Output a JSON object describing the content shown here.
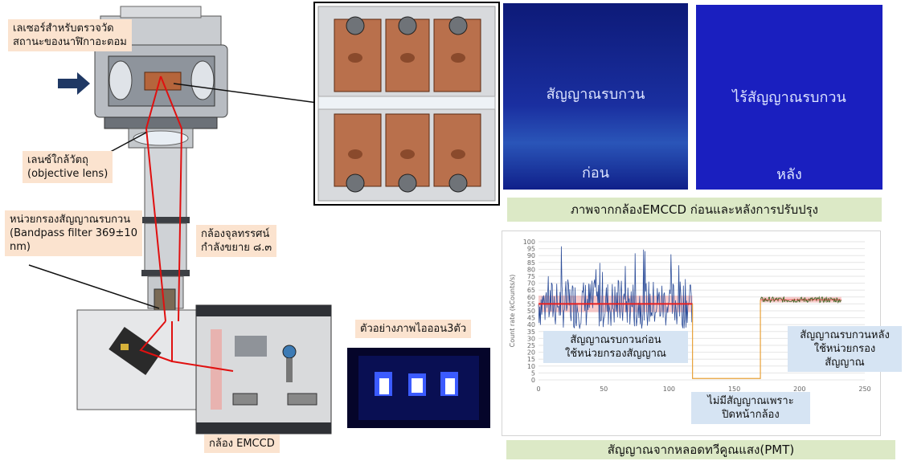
{
  "labels": {
    "laser": "เลเซอร์สำหรับตรวจวัด\nสถานะของนาฬิกาอะตอม",
    "objective": "เลนซ์ใกล้วัตถุ\n(objective lens)",
    "bandpass": "หน่วยกรองสัญญาณรบกวน\n(Bandpass filter 369±10\nnm)",
    "microscope": "กล้องจุลทรรศน์\nกำลังขยาย ๘.๓",
    "emccd": "กล้อง EMCCD",
    "ion_example": "ตัวอย่างภาพไอออน3ตัว"
  },
  "ccd_images": {
    "before_title": "สัญญาณรบกวน",
    "before_sub": "ก่อน",
    "after_title": "ไร้สัญญาณรบกวน",
    "after_sub": "หลัง",
    "caption": "ภาพจากกล้องEMCCD ก่อนและหลังการปรับปรุง"
  },
  "pmt": {
    "caption": "สัญญาณจากหลอดทวีคูณแสง(PMT)",
    "before_label": "สัญญาณรบกวนก่อน\nใช้หน่วยกรองสัญญาณ",
    "closed_label": "ไม่มีสัญญาณเพราะ\nปิดหน้ากล้อง",
    "after_label": "สัญญาณรบกวนหลัง\nใช้หน่วยกรอง\nสัญญาณ"
  },
  "colors": {
    "arrow": "#1f3864",
    "beam": "#e01010",
    "ccd_before": "#10208a",
    "ccd_after": "#1a1fbf",
    "series_raw_before": "#2f4f9a",
    "series_mean": "#e82020",
    "series_band": "#f4a6a6",
    "series_closed": "#e8a23a",
    "series_after": "#3d6b2b"
  },
  "chart_data": {
    "type": "line",
    "title": "",
    "xlabel": "",
    "ylabel": "Count rate (kCounts/s)",
    "xlim": [
      0,
      250
    ],
    "ylim": [
      0,
      100
    ],
    "x_ticks": [
      0,
      50,
      100,
      150,
      200,
      250
    ],
    "y_ticks": [
      0,
      5,
      10,
      15,
      20,
      25,
      30,
      35,
      40,
      45,
      50,
      55,
      60,
      65,
      70,
      75,
      80,
      85,
      90,
      95,
      100
    ],
    "grid": true,
    "segments": [
      {
        "x_start": 0,
        "x_end": 118,
        "mean": 55,
        "band": [
          49,
          61
        ],
        "min": 30,
        "max": 100
      },
      {
        "x_start": 118,
        "x_end": 170,
        "mean": 1
      },
      {
        "x_start": 170,
        "x_end": 232,
        "mean": 58,
        "band": [
          56,
          60
        ],
        "min": 55,
        "max": 64
      }
    ]
  }
}
